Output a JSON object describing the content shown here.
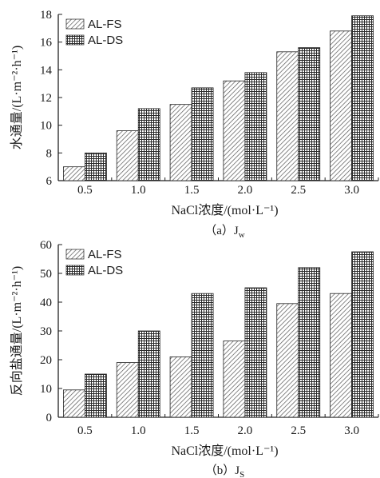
{
  "chart_data": [
    {
      "type": "bar",
      "categories": [
        "0.5",
        "1.0",
        "1.5",
        "2.0",
        "2.5",
        "3.0"
      ],
      "series": [
        {
          "name": "AL-FS",
          "values": [
            7.0,
            9.6,
            11.5,
            13.2,
            15.3,
            16.8
          ]
        },
        {
          "name": "AL-DS",
          "values": [
            8.0,
            11.2,
            12.7,
            13.8,
            15.6,
            17.9
          ]
        }
      ],
      "ylabel": "水通量/(L·m⁻²·h⁻¹)",
      "xlabel": "NaCl浓度/(mol·L⁻¹)",
      "caption": "（a）J",
      "caption_sub": "w",
      "ylim": [
        6,
        18
      ],
      "yticks": [
        "6",
        "8",
        "10",
        "12",
        "14",
        "16",
        "18"
      ],
      "legend_position": "top-left",
      "grid": false
    },
    {
      "type": "bar",
      "categories": [
        "0.5",
        "1.0",
        "1.5",
        "2.0",
        "2.5",
        "3.0"
      ],
      "series": [
        {
          "name": "AL-FS",
          "values": [
            9.5,
            19,
            21,
            26.5,
            39.5,
            43
          ]
        },
        {
          "name": "AL-DS",
          "values": [
            15,
            30,
            43,
            45,
            52,
            57.5
          ]
        }
      ],
      "ylabel": "反向盐通量/(L·m⁻²·h⁻¹)",
      "xlabel": "NaCl浓度/(mol·L⁻¹)",
      "caption": "（b）J",
      "caption_sub": "S",
      "ylim": [
        0,
        60
      ],
      "yticks": [
        "0",
        "10",
        "20",
        "30",
        "40",
        "50",
        "60"
      ],
      "legend_position": "top-left",
      "grid": false
    }
  ]
}
